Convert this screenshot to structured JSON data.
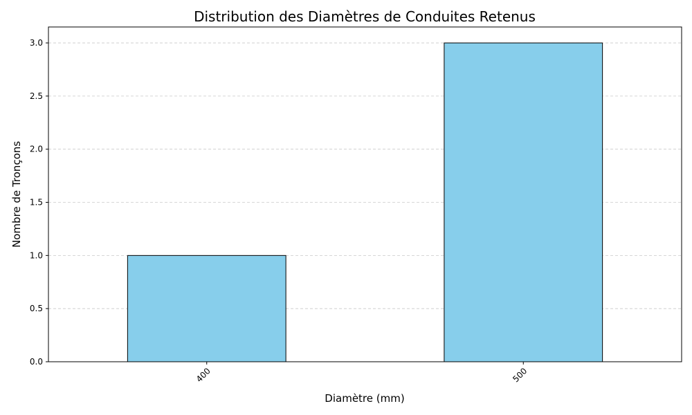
{
  "chart_data": {
    "type": "bar",
    "title": "Distribution des Diamètres de Conduites Retenus",
    "xlabel": "Diamètre (mm)",
    "ylabel": "Nombre de Tronçons",
    "categories": [
      "400",
      "500"
    ],
    "values": [
      1,
      3
    ],
    "ylim": [
      0,
      3.15
    ],
    "yticks": [
      "0.0",
      "0.5",
      "1.0",
      "1.5",
      "2.0",
      "2.5",
      "3.0"
    ],
    "grid": "y-dashed",
    "bar_color": "#87ceeb",
    "bar_edge_color": "#000000",
    "x_tick_rotation": "45deg"
  }
}
